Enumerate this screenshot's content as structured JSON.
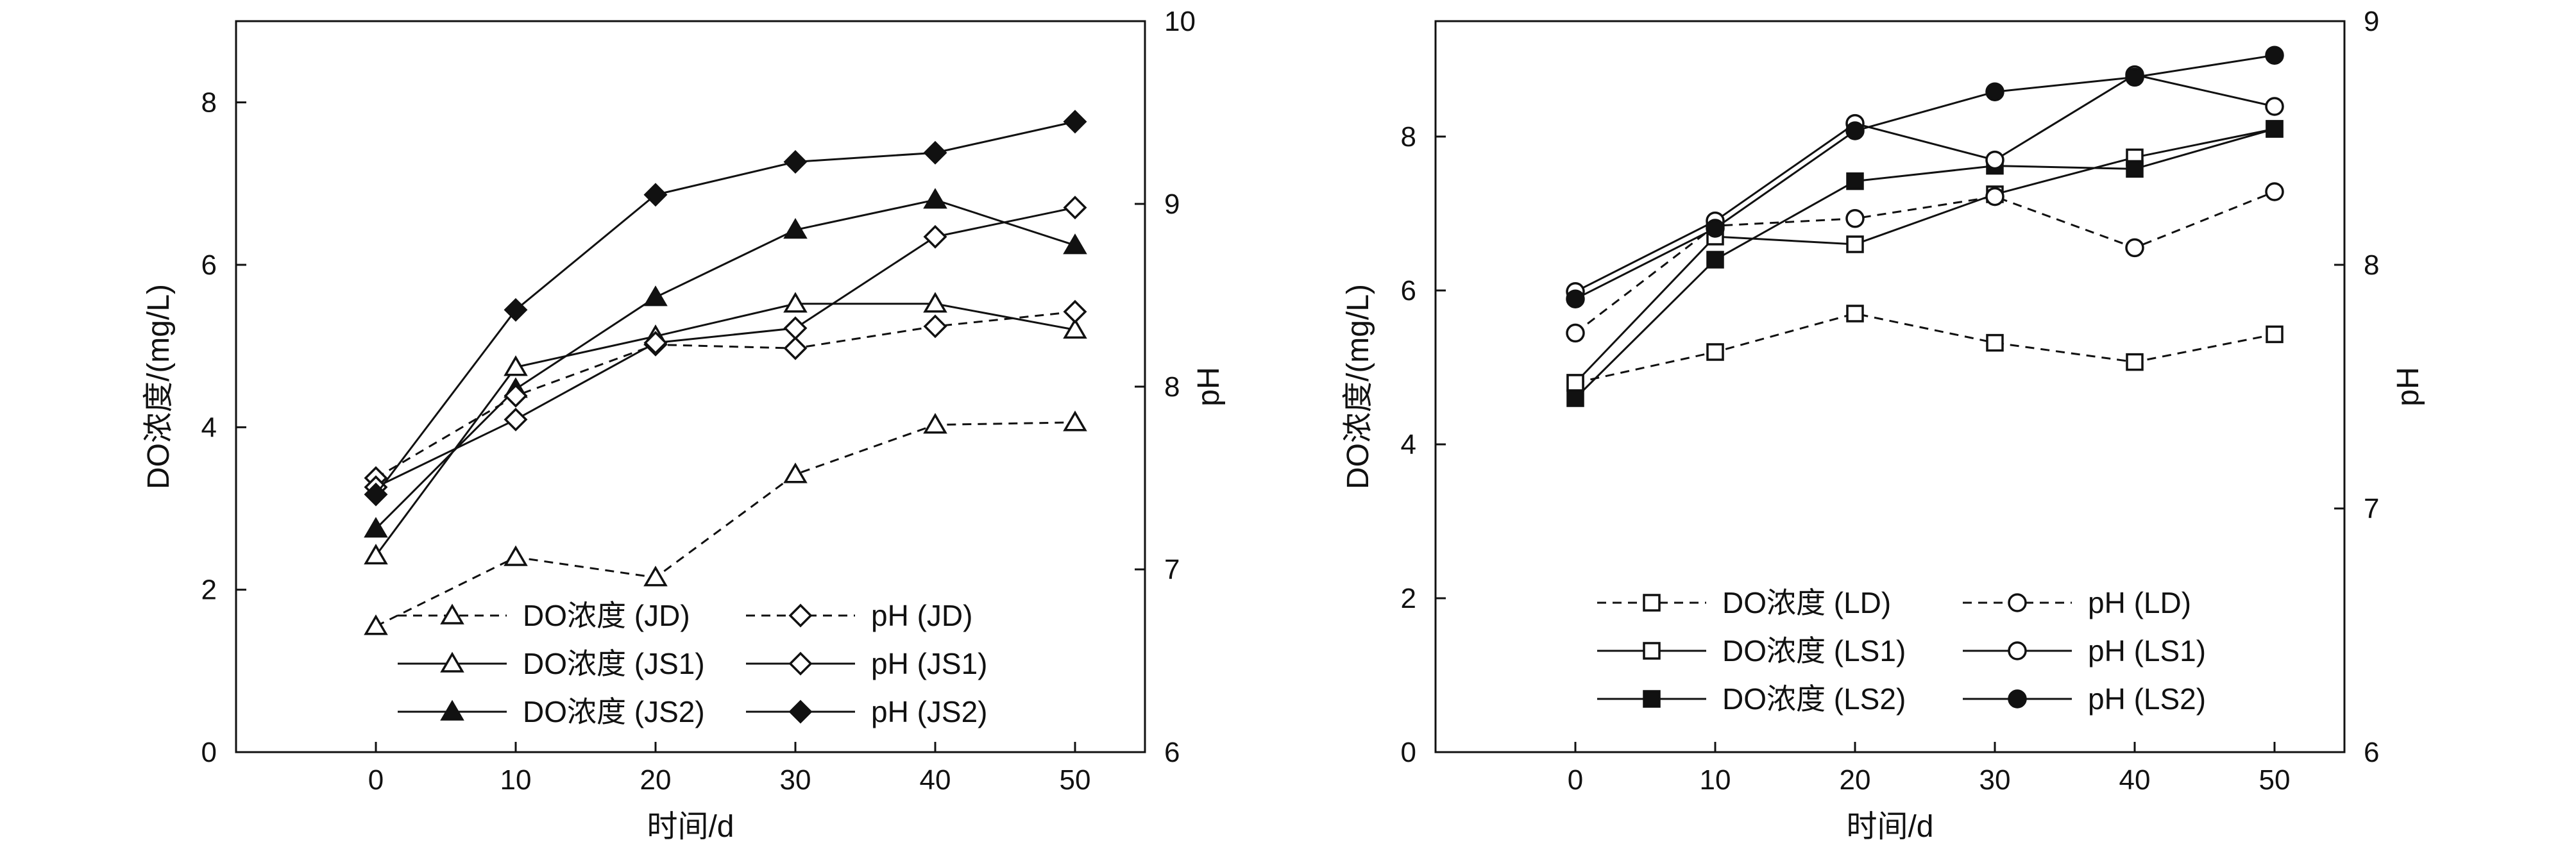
{
  "chart_data": [
    {
      "type": "line",
      "panel": "left",
      "xlabel": "时间/d",
      "ylabel": "DO浓度/(mg/L)",
      "ylabel_right": "pH",
      "x": [
        0,
        10,
        20,
        30,
        40,
        50
      ],
      "xlim": [
        -10,
        55
      ],
      "xticks": [
        "0",
        "10",
        "20",
        "30",
        "40",
        "50"
      ],
      "ylim": [
        0,
        9
      ],
      "yticks": [
        "0",
        "2",
        "4",
        "6",
        "8"
      ],
      "ylim_right": [
        6,
        10
      ],
      "yticks_right": [
        "6",
        "7",
        "8",
        "9",
        "10"
      ],
      "legend_position": "bottom-right",
      "grid": false,
      "series": [
        {
          "name": "DO浓度 (JD)",
          "axis": "left",
          "marker": "triangle-open",
          "line": "dashed",
          "values": [
            1.55,
            2.4,
            2.15,
            3.42,
            4.03,
            4.06
          ]
        },
        {
          "name": "DO浓度 (JS1)",
          "axis": "left",
          "marker": "triangle-open",
          "line": "solid",
          "values": [
            2.42,
            4.74,
            5.12,
            5.52,
            5.52,
            5.2
          ]
        },
        {
          "name": "DO浓度 (JS2)",
          "axis": "left",
          "marker": "triangle-filled",
          "line": "solid",
          "values": [
            2.75,
            4.47,
            5.6,
            6.43,
            6.8,
            6.24
          ]
        },
        {
          "name": "pH (JD)",
          "axis": "right",
          "marker": "diamond-open",
          "line": "dashed",
          "values": [
            7.5,
            7.95,
            8.23,
            8.21,
            8.33,
            8.41
          ]
        },
        {
          "name": "pH (JS1)",
          "axis": "right",
          "marker": "diamond-open",
          "line": "solid",
          "values": [
            7.45,
            7.82,
            8.24,
            8.32,
            8.82,
            8.98
          ]
        },
        {
          "name": "pH (JS2)",
          "axis": "right",
          "marker": "diamond-filled",
          "line": "solid",
          "values": [
            7.41,
            8.42,
            9.05,
            9.23,
            9.28,
            9.45
          ]
        }
      ]
    },
    {
      "type": "line",
      "panel": "right",
      "xlabel": "时间/d",
      "ylabel": "DO浓度/(mg/L)",
      "ylabel_right": "pH",
      "x": [
        0,
        10,
        20,
        30,
        40,
        50
      ],
      "xlim": [
        -10,
        55
      ],
      "xticks": [
        "0",
        "10",
        "20",
        "30",
        "40",
        "50"
      ],
      "ylim": [
        0,
        9.5
      ],
      "yticks": [
        "0",
        "2",
        "4",
        "6",
        "8"
      ],
      "ylim_right": [
        6,
        9
      ],
      "yticks_right": [
        "6",
        "7",
        "8",
        "9"
      ],
      "legend_position": "bottom-right",
      "grid": false,
      "series": [
        {
          "name": "DO浓度 (LD)",
          "axis": "left",
          "marker": "square-open",
          "line": "dashed",
          "values": [
            4.8,
            5.2,
            5.7,
            5.32,
            5.07,
            5.43
          ]
        },
        {
          "name": "DO浓度 (LS1)",
          "axis": "left",
          "marker": "square-open",
          "line": "solid",
          "values": [
            4.8,
            6.7,
            6.6,
            7.25,
            7.73,
            8.1
          ]
        },
        {
          "name": "DO浓度 (LS2)",
          "axis": "left",
          "marker": "square-filled",
          "line": "solid",
          "values": [
            4.6,
            6.4,
            7.42,
            7.62,
            7.58,
            8.1
          ]
        },
        {
          "name": "pH (LD)",
          "axis": "right",
          "marker": "circle-open",
          "line": "dashed",
          "values": [
            7.72,
            8.16,
            8.19,
            8.28,
            8.07,
            8.3
          ]
        },
        {
          "name": "pH (LS1)",
          "axis": "right",
          "marker": "circle-open",
          "line": "solid",
          "values": [
            7.89,
            8.18,
            8.58,
            8.43,
            8.78,
            8.65
          ]
        },
        {
          "name": "pH (LS2)",
          "axis": "right",
          "marker": "circle-filled",
          "line": "solid",
          "values": [
            7.86,
            8.15,
            8.55,
            8.71,
            8.77,
            8.86
          ]
        }
      ]
    }
  ]
}
